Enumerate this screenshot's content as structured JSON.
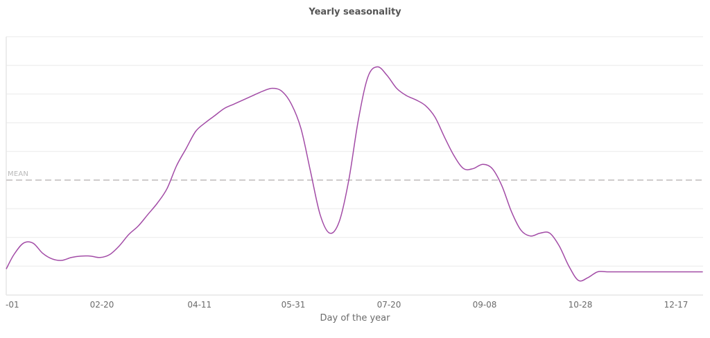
{
  "chart_data": {
    "type": "line",
    "title": "Yearly seasonality",
    "xlabel": "Day of the year",
    "ylabel": "",
    "x_tick_labels": [
      "-01",
      "02-20",
      "04-11",
      "05-31",
      "07-20",
      "09-08",
      "10-28",
      "12-17"
    ],
    "x_tick_days": [
      1,
      51,
      102,
      151,
      201,
      251,
      301,
      351
    ],
    "ylim": [
      -4,
      5
    ],
    "y_gridlines": [
      -4,
      -3,
      -2,
      -1,
      0,
      1,
      2,
      3,
      4,
      5
    ],
    "y_tick_labels_visible": false,
    "grid": true,
    "reference_line": {
      "label": "MEAN",
      "value": 0,
      "style": "dashed",
      "color": "#c8c4c4"
    },
    "series": [
      {
        "name": "Yearly seasonality",
        "color": "#a24ba6",
        "x": [
          1,
          5,
          10,
          15,
          20,
          25,
          30,
          35,
          40,
          45,
          50,
          55,
          60,
          65,
          70,
          75,
          80,
          85,
          90,
          95,
          100,
          105,
          110,
          115,
          120,
          125,
          130,
          135,
          140,
          145,
          150,
          155,
          160,
          165,
          170,
          175,
          180,
          185,
          190,
          195,
          200,
          205,
          210,
          215,
          220,
          225,
          230,
          235,
          240,
          245,
          250,
          255,
          260,
          265,
          270,
          275,
          280,
          285,
          290,
          295,
          300,
          305,
          310,
          315,
          320,
          325,
          330,
          335,
          340,
          345,
          350,
          355,
          360,
          365
        ],
        "y": [
          -3.1,
          -2.6,
          -2.2,
          -2.2,
          -2.55,
          -2.75,
          -2.8,
          -2.7,
          -2.65,
          -2.65,
          -2.7,
          -2.6,
          -2.3,
          -1.9,
          -1.6,
          -1.2,
          -0.8,
          -0.3,
          0.5,
          1.1,
          1.7,
          2.0,
          2.25,
          2.5,
          2.65,
          2.8,
          2.95,
          3.1,
          3.2,
          3.1,
          2.65,
          1.8,
          0.3,
          -1.2,
          -1.85,
          -1.45,
          0.0,
          2.1,
          3.6,
          3.95,
          3.65,
          3.2,
          2.95,
          2.8,
          2.6,
          2.2,
          1.5,
          0.85,
          0.4,
          0.4,
          0.55,
          0.4,
          -0.2,
          -1.1,
          -1.75,
          -1.95,
          -1.85,
          -1.85,
          -2.3,
          -3.0,
          -3.5,
          -3.4,
          -3.2,
          -3.2,
          -3.2,
          -3.2,
          -3.2,
          -3.2,
          -3.2,
          -3.2,
          -3.2,
          -3.2,
          -3.2,
          -3.2
        ]
      }
    ]
  }
}
